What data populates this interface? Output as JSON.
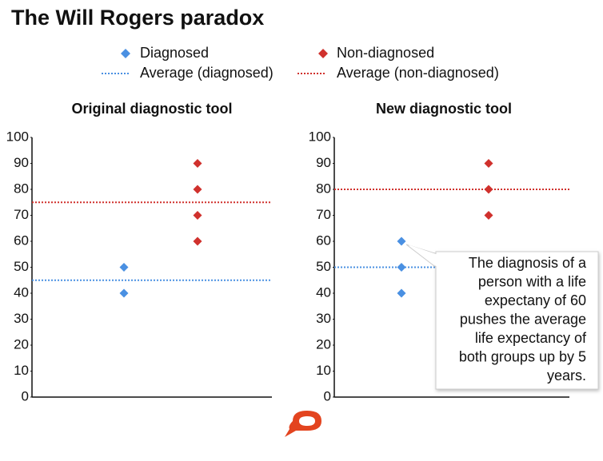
{
  "title": "The Will Rogers paradox",
  "legend": [
    {
      "name": "Diagnosed",
      "color": "#4a90e2",
      "marker": "diamond"
    },
    {
      "name": "Non-diagnosed",
      "color": "#d0312d",
      "marker": "diamond"
    },
    {
      "name": "Average (diagnosed)",
      "color": "#4a90e2",
      "marker": "dotted-line"
    },
    {
      "name": "Average (non-diagnosed)",
      "color": "#d0312d",
      "marker": "dotted-line"
    }
  ],
  "chart_data": [
    {
      "type": "strip",
      "title": "Original diagnostic tool",
      "series": [
        {
          "values": [
            40,
            50
          ],
          "average": 45
        },
        {
          "values": [
            60,
            70,
            80,
            90
          ],
          "average": 75
        }
      ],
      "ylim": [
        0,
        100
      ],
      "yticks": [
        0,
        10,
        20,
        30,
        40,
        50,
        60,
        70,
        80,
        90,
        100
      ]
    },
    {
      "type": "strip",
      "title": "New diagnostic tool",
      "series": [
        {
          "values": [
            40,
            50,
            60
          ],
          "average": 50
        },
        {
          "values": [
            70,
            80,
            90
          ],
          "average": 80
        }
      ],
      "ylim": [
        0,
        100
      ],
      "yticks": [
        0,
        10,
        20,
        30,
        40,
        50,
        60,
        70,
        80,
        90,
        100
      ],
      "annotation": [
        "The diagnosis of a",
        "person with a life",
        "expectany of 60",
        "pushes the average",
        "life expectancy of",
        "both groups up by 5",
        "years."
      ]
    }
  ]
}
